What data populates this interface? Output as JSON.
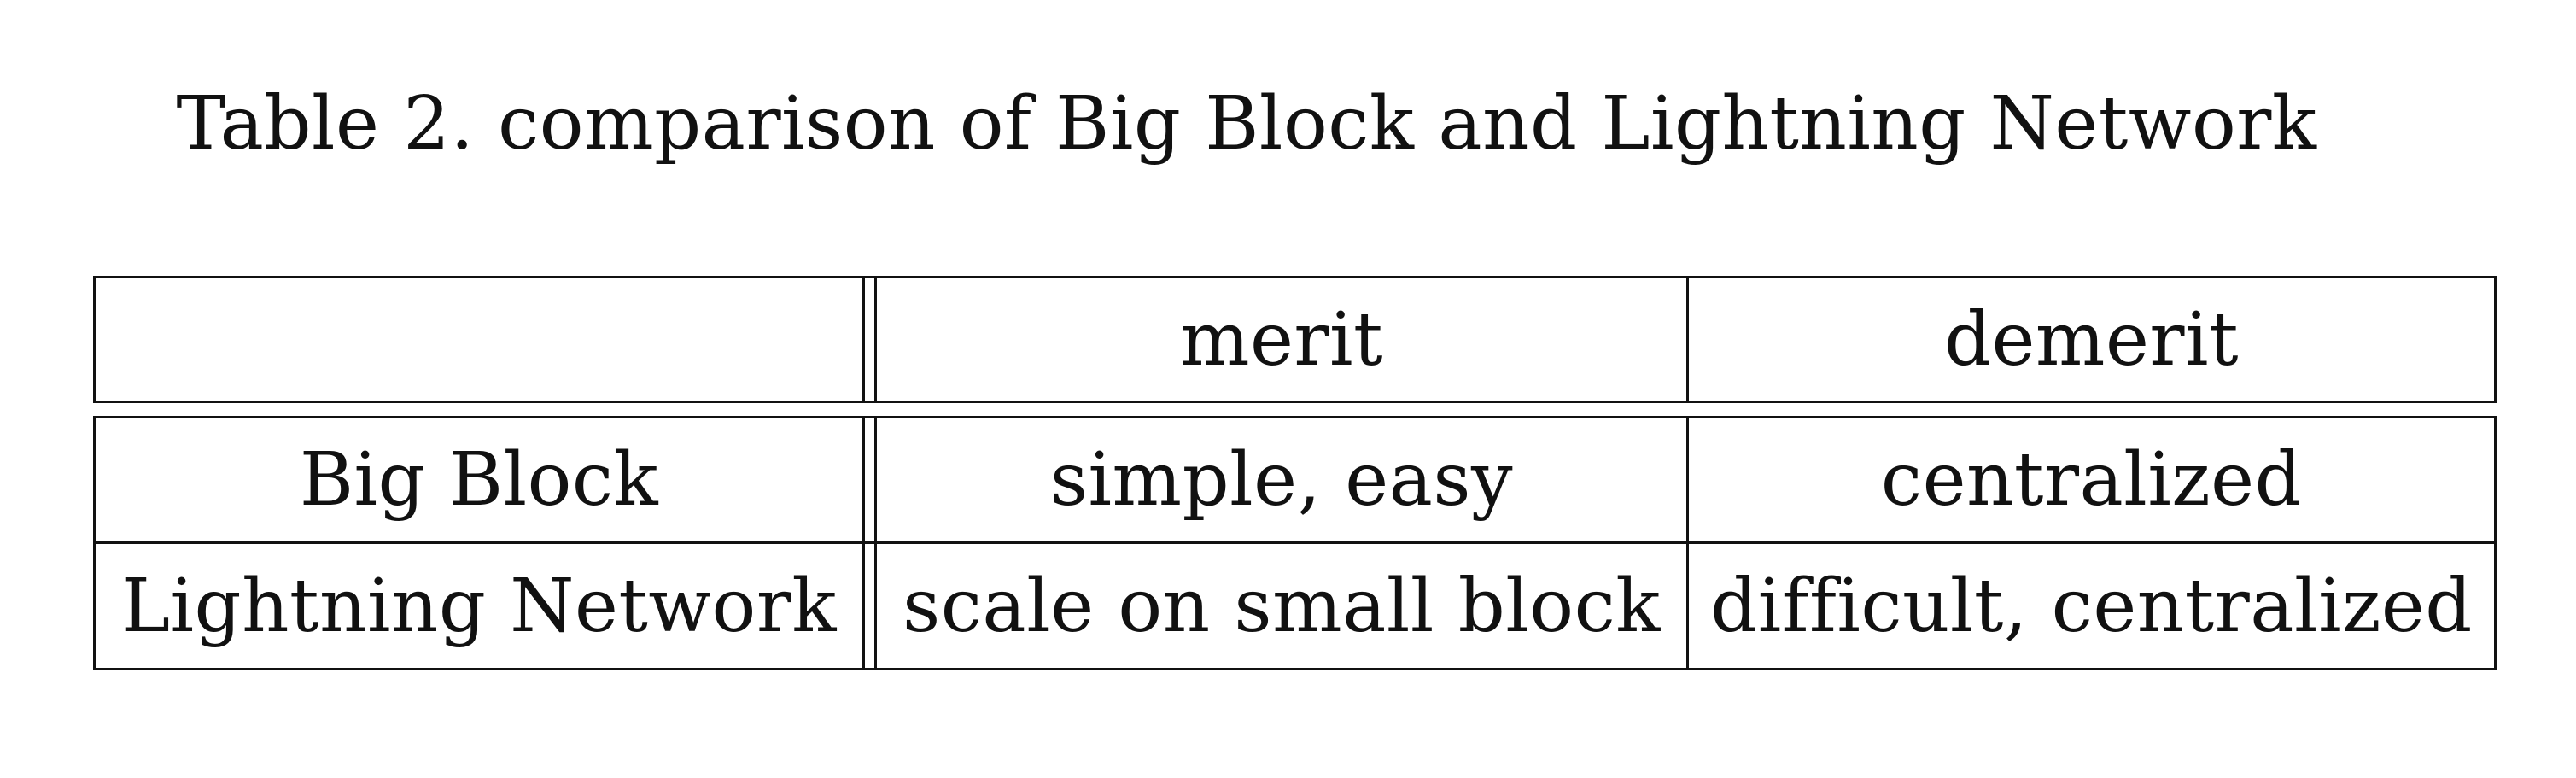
{
  "caption": "Table 2. comparison of Big Block and Lightning Network",
  "table": {
    "headers": [
      "",
      "merit",
      "demerit"
    ],
    "rows": [
      {
        "label": "Big Block",
        "merit": "simple, easy",
        "demerit": "centralized"
      },
      {
        "label": "Lightning Network",
        "merit": "scale on small block",
        "demerit": "difficult, centralized"
      }
    ]
  }
}
